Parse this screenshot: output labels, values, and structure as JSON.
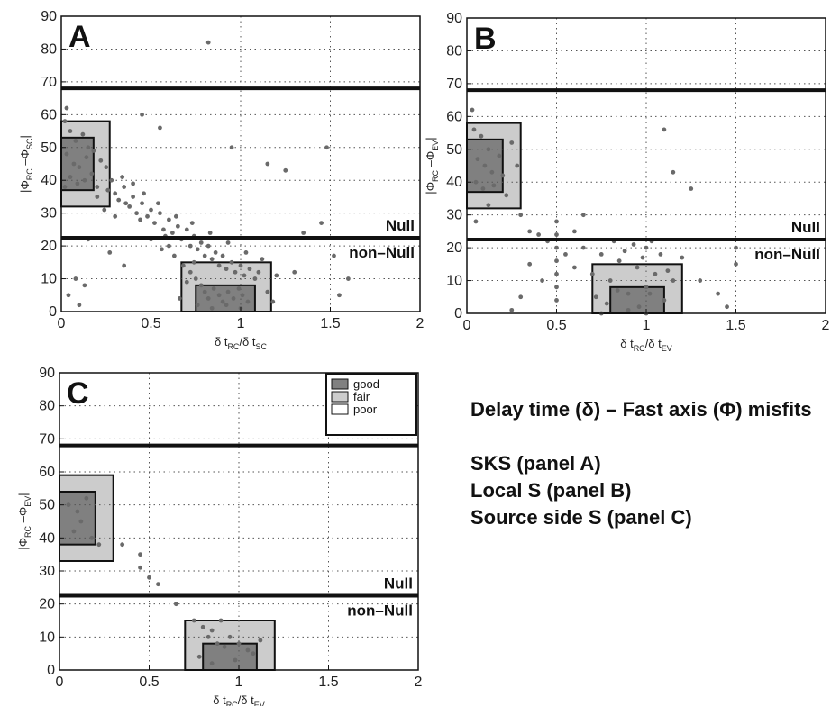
{
  "caption": {
    "title": "Delay time (δ) – Fast axis (Φ) misfits",
    "lines": [
      "SKS (panel A)",
      "Local S (panel B)",
      "Source side S (panel C)"
    ]
  },
  "colors": {
    "good": "#808080",
    "fair": "#cccccc",
    "poor": "#ffffff",
    "points": "#6a6a6a",
    "line": "#111111"
  },
  "chart_data": [
    {
      "type": "scatter",
      "panel": "A",
      "xlim": [
        0,
        2
      ],
      "ylim": [
        0,
        90
      ],
      "xticks": [
        0,
        0.5,
        1,
        1.5,
        2
      ],
      "xtick_labels": [
        "0",
        "0.5",
        "1",
        "1.5",
        "2"
      ],
      "yticks": [
        0,
        10,
        20,
        30,
        40,
        50,
        60,
        70,
        80,
        90
      ],
      "ytick_labels": [
        "0",
        "10",
        "20",
        "30",
        "40",
        "50",
        "60",
        "70",
        "80",
        "90"
      ],
      "xlabel": {
        "main": "δ t",
        "sub1": "RC",
        "mid": "/δ t",
        "sub2": "SC"
      },
      "ylabel": {
        "main": "|Φ",
        "sub1": "RC",
        "mid": " –Φ",
        "sub2": "SC",
        "end": "|"
      },
      "grid": true,
      "hlines": [
        68,
        22.5
      ],
      "null_label": "Null",
      "non_null_label": "non–Null",
      "regions": [
        {
          "quality": "fair",
          "x": [
            0,
            0.27
          ],
          "y": [
            32,
            58
          ]
        },
        {
          "quality": "good",
          "x": [
            0,
            0.18
          ],
          "y": [
            37,
            53
          ]
        },
        {
          "quality": "fair",
          "x": [
            0.67,
            1.17
          ],
          "y": [
            0,
            15
          ]
        },
        {
          "quality": "good",
          "x": [
            0.75,
            1.08
          ],
          "y": [
            0,
            8
          ]
        }
      ],
      "points": [
        [
          0.03,
          62
        ],
        [
          0.02,
          58
        ],
        [
          0.05,
          55
        ],
        [
          0.08,
          52
        ],
        [
          0.12,
          54
        ],
        [
          0.15,
          50
        ],
        [
          0.03,
          48
        ],
        [
          0.07,
          45
        ],
        [
          0.1,
          44
        ],
        [
          0.14,
          47
        ],
        [
          0.18,
          49
        ],
        [
          0.22,
          46
        ],
        [
          0.05,
          41
        ],
        [
          0.09,
          39
        ],
        [
          0.13,
          40
        ],
        [
          0.17,
          42
        ],
        [
          0.2,
          38
        ],
        [
          0.25,
          44
        ],
        [
          0.28,
          40
        ],
        [
          0.3,
          36
        ],
        [
          0.32,
          34
        ],
        [
          0.35,
          38
        ],
        [
          0.38,
          32
        ],
        [
          0.4,
          35
        ],
        [
          0.42,
          30
        ],
        [
          0.45,
          33
        ],
        [
          0.48,
          29
        ],
        [
          0.5,
          31
        ],
        [
          0.52,
          27
        ],
        [
          0.55,
          30
        ],
        [
          0.57,
          25
        ],
        [
          0.6,
          28
        ],
        [
          0.62,
          24
        ],
        [
          0.65,
          26
        ],
        [
          0.67,
          22
        ],
        [
          0.7,
          25
        ],
        [
          0.72,
          20
        ],
        [
          0.74,
          23
        ],
        [
          0.76,
          19
        ],
        [
          0.78,
          21
        ],
        [
          0.8,
          17
        ],
        [
          0.82,
          20
        ],
        [
          0.84,
          16
        ],
        [
          0.86,
          18
        ],
        [
          0.88,
          14
        ],
        [
          0.9,
          17
        ],
        [
          0.92,
          13
        ],
        [
          0.95,
          15
        ],
        [
          0.97,
          12
        ],
        [
          1.0,
          14
        ],
        [
          1.02,
          11
        ],
        [
          1.05,
          13
        ],
        [
          1.08,
          10
        ],
        [
          1.1,
          12
        ],
        [
          0.72,
          12
        ],
        [
          0.75,
          10
        ],
        [
          0.78,
          8
        ],
        [
          0.8,
          6
        ],
        [
          0.82,
          4
        ],
        [
          0.85,
          7
        ],
        [
          0.88,
          5
        ],
        [
          0.9,
          3
        ],
        [
          0.93,
          6
        ],
        [
          0.96,
          4
        ],
        [
          0.99,
          7
        ],
        [
          1.01,
          5
        ],
        [
          1.04,
          3
        ],
        [
          0.76,
          2
        ],
        [
          0.84,
          1
        ],
        [
          0.92,
          2
        ],
        [
          1.0,
          1
        ],
        [
          0.7,
          9
        ],
        [
          0.68,
          14
        ],
        [
          0.74,
          15
        ],
        [
          0.6,
          20
        ],
        [
          0.58,
          23
        ],
        [
          0.44,
          28
        ],
        [
          0.36,
          33
        ],
        [
          0.26,
          37
        ],
        [
          0.2,
          35
        ],
        [
          0.34,
          41
        ],
        [
          0.4,
          39
        ],
        [
          0.46,
          36
        ],
        [
          0.54,
          33
        ],
        [
          0.64,
          29
        ],
        [
          0.73,
          27
        ],
        [
          0.83,
          24
        ],
        [
          0.93,
          21
        ],
        [
          1.03,
          18
        ],
        [
          1.12,
          16
        ],
        [
          0.63,
          17
        ],
        [
          0.56,
          19
        ],
        [
          0.5,
          22
        ],
        [
          0.3,
          29
        ],
        [
          0.24,
          31
        ],
        [
          0.66,
          4
        ],
        [
          1.15,
          6
        ],
        [
          1.2,
          11
        ],
        [
          1.18,
          3
        ],
        [
          0.08,
          10
        ],
        [
          0.13,
          8
        ],
        [
          0.04,
          5
        ],
        [
          0.1,
          2
        ],
        [
          0.02,
          38
        ],
        [
          0.45,
          60
        ],
        [
          0.55,
          56
        ],
        [
          0.95,
          50
        ],
        [
          1.15,
          45
        ],
        [
          1.25,
          43
        ],
        [
          1.48,
          50
        ],
        [
          0.82,
          82
        ],
        [
          1.3,
          12
        ],
        [
          1.55,
          5
        ],
        [
          1.6,
          10
        ],
        [
          1.45,
          27
        ],
        [
          1.52,
          17
        ],
        [
          1.35,
          24
        ],
        [
          0.27,
          18
        ],
        [
          0.35,
          14
        ],
        [
          0.15,
          22
        ]
      ]
    },
    {
      "type": "scatter",
      "panel": "B",
      "xlim": [
        0,
        2
      ],
      "ylim": [
        0,
        90
      ],
      "xticks": [
        0,
        0.5,
        1,
        1.5,
        2
      ],
      "xtick_labels": [
        "0",
        "0.5",
        "1",
        "1.5",
        "2"
      ],
      "yticks": [
        0,
        10,
        20,
        30,
        40,
        50,
        60,
        70,
        80,
        90
      ],
      "ytick_labels": [
        "0",
        "10",
        "20",
        "30",
        "40",
        "50",
        "60",
        "70",
        "80",
        "90"
      ],
      "xlabel": {
        "main": "δ t",
        "sub1": "RC",
        "mid": "/δ t",
        "sub2": "EV"
      },
      "ylabel": {
        "main": "|Φ",
        "sub1": "RC",
        "mid": " –Φ",
        "sub2": "EV",
        "end": "|"
      },
      "grid": true,
      "hlines": [
        68,
        22.5
      ],
      "null_label": "Null",
      "non_null_label": "non–Null",
      "regions": [
        {
          "quality": "fair",
          "x": [
            0,
            0.3
          ],
          "y": [
            32,
            58
          ]
        },
        {
          "quality": "good",
          "x": [
            0,
            0.2
          ],
          "y": [
            37,
            53
          ]
        },
        {
          "quality": "fair",
          "x": [
            0.7,
            1.2
          ],
          "y": [
            0,
            15
          ]
        },
        {
          "quality": "good",
          "x": [
            0.8,
            1.1
          ],
          "y": [
            0,
            8
          ]
        }
      ],
      "points": [
        [
          0.03,
          62
        ],
        [
          0.04,
          56
        ],
        [
          0.08,
          54
        ],
        [
          0.12,
          50
        ],
        [
          0.06,
          47
        ],
        [
          0.1,
          45
        ],
        [
          0.14,
          43
        ],
        [
          0.18,
          48
        ],
        [
          0.05,
          40
        ],
        [
          0.09,
          38
        ],
        [
          0.15,
          39
        ],
        [
          0.2,
          42
        ],
        [
          0.22,
          36
        ],
        [
          0.25,
          52
        ],
        [
          0.28,
          45
        ],
        [
          0.3,
          30
        ],
        [
          0.35,
          25
        ],
        [
          0.4,
          24
        ],
        [
          0.45,
          22
        ],
        [
          0.5,
          28
        ],
        [
          0.5,
          24
        ],
        [
          0.5,
          20
        ],
        [
          0.5,
          16
        ],
        [
          0.5,
          12
        ],
        [
          0.5,
          8
        ],
        [
          0.5,
          4
        ],
        [
          0.55,
          18
        ],
        [
          0.6,
          14
        ],
        [
          0.65,
          20
        ],
        [
          0.7,
          12
        ],
        [
          0.75,
          18
        ],
        [
          0.8,
          10
        ],
        [
          0.85,
          16
        ],
        [
          0.9,
          6
        ],
        [
          0.95,
          14
        ],
        [
          1.0,
          20
        ],
        [
          1.0,
          8
        ],
        [
          1.05,
          12
        ],
        [
          1.1,
          4
        ],
        [
          1.15,
          10
        ],
        [
          0.82,
          22
        ],
        [
          0.88,
          19
        ],
        [
          0.93,
          21
        ],
        [
          0.98,
          17
        ],
        [
          1.03,
          22
        ],
        [
          1.08,
          18
        ],
        [
          0.72,
          5
        ],
        [
          0.78,
          3
        ],
        [
          0.84,
          7
        ],
        [
          0.96,
          2
        ],
        [
          1.02,
          6
        ],
        [
          1.12,
          13
        ],
        [
          1.2,
          17
        ],
        [
          1.3,
          10
        ],
        [
          1.4,
          6
        ],
        [
          1.45,
          2
        ],
        [
          1.5,
          15
        ],
        [
          1.5,
          20
        ],
        [
          0.6,
          25
        ],
        [
          0.65,
          30
        ],
        [
          0.35,
          15
        ],
        [
          0.42,
          10
        ],
        [
          0.3,
          5
        ],
        [
          0.25,
          1
        ],
        [
          1.1,
          56
        ],
        [
          1.15,
          43
        ],
        [
          1.25,
          38
        ],
        [
          0.05,
          28
        ],
        [
          0.12,
          33
        ],
        [
          1.0,
          0
        ],
        [
          0.75,
          0
        ],
        [
          0.9,
          1
        ]
      ]
    },
    {
      "type": "scatter",
      "panel": "C",
      "xlim": [
        0,
        2
      ],
      "ylim": [
        0,
        90
      ],
      "xticks": [
        0,
        0.5,
        1,
        1.5,
        2
      ],
      "xtick_labels": [
        "0",
        "0.5",
        "1",
        "1.5",
        "2"
      ],
      "yticks": [
        0,
        10,
        20,
        30,
        40,
        50,
        60,
        70,
        80,
        90
      ],
      "ytick_labels": [
        "0",
        "10",
        "20",
        "30",
        "40",
        "50",
        "60",
        "70",
        "80",
        "90"
      ],
      "xlabel": {
        "main": "δ t",
        "sub1": "RC",
        "mid": "/δ t",
        "sub2": "EV"
      },
      "ylabel": {
        "main": "|Φ",
        "sub1": "RC",
        "mid": " –Φ",
        "sub2": "EV",
        "end": "|"
      },
      "grid": true,
      "hlines": [
        68,
        22.5
      ],
      "null_label": "Null",
      "non_null_label": "non–Null",
      "legend": {
        "position": "top-right",
        "entries": [
          {
            "label": "good",
            "quality": "good"
          },
          {
            "label": "fair",
            "quality": "fair"
          },
          {
            "label": "poor",
            "quality": "poor"
          }
        ]
      },
      "regions": [
        {
          "quality": "fair",
          "x": [
            0,
            0.3
          ],
          "y": [
            33,
            59
          ]
        },
        {
          "quality": "good",
          "x": [
            0,
            0.2
          ],
          "y": [
            38,
            54
          ]
        },
        {
          "quality": "fair",
          "x": [
            0.7,
            1.2
          ],
          "y": [
            0,
            15
          ]
        },
        {
          "quality": "good",
          "x": [
            0.8,
            1.1
          ],
          "y": [
            0,
            8
          ]
        }
      ],
      "points": [
        [
          0.05,
          50
        ],
        [
          0.1,
          48
        ],
        [
          0.12,
          45
        ],
        [
          0.15,
          52
        ],
        [
          0.08,
          42
        ],
        [
          0.18,
          40
        ],
        [
          0.22,
          38
        ],
        [
          0.35,
          38
        ],
        [
          0.45,
          35
        ],
        [
          0.45,
          31
        ],
        [
          0.5,
          28
        ],
        [
          0.55,
          26
        ],
        [
          0.65,
          20
        ],
        [
          0.75,
          15
        ],
        [
          0.8,
          13
        ],
        [
          0.85,
          12
        ],
        [
          0.9,
          15
        ],
        [
          0.95,
          10
        ],
        [
          1.0,
          8
        ],
        [
          1.05,
          6
        ],
        [
          0.78,
          4
        ],
        [
          0.85,
          2
        ],
        [
          0.92,
          7
        ],
        [
          0.98,
          3
        ],
        [
          1.08,
          5
        ],
        [
          1.12,
          9
        ],
        [
          0.83,
          10
        ],
        [
          0.88,
          8
        ]
      ]
    }
  ]
}
